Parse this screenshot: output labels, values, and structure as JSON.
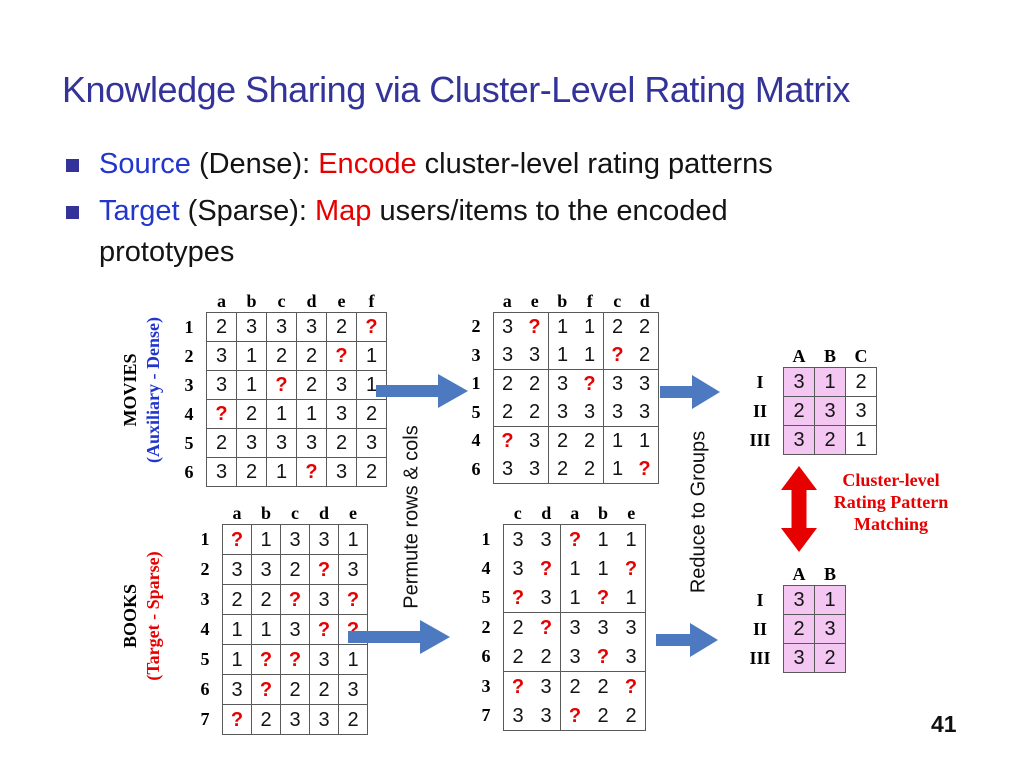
{
  "colors": {
    "title-blue": "#333399",
    "link-blue": "#2236cc",
    "accent-red": "#e60000",
    "pink": "#f4c6f2",
    "arrow-blue": "#4c79c0",
    "line": "#595959",
    "text-black": "#141414"
  },
  "slide": {
    "title": "Knowledge Sharing via Cluster-Level Rating Matrix",
    "page_number": "41",
    "bullets": {
      "b1": {
        "p1": "Source ",
        "p2": "(Dense): ",
        "p3": "Encode ",
        "p4": "cluster-level rating patterns"
      },
      "b2": {
        "p1": "Target ",
        "p2": "(Sparse): ",
        "p3": "Map ",
        "p4": "users/items to the encoded",
        "line2": "prototypes"
      }
    }
  },
  "diagram": {
    "movies_label": {
      "line1": "MOVIES",
      "line2": "(Auxiliary - Dense)"
    },
    "books_label": {
      "line1": "BOOKS",
      "line2": "(Target - Sparse)"
    },
    "permute_label": "Permute rows & cols",
    "reduce_label": "Reduce to Groups",
    "matching": {
      "line1": "Cluster-level",
      "line2": "Rating Pattern",
      "line3": "Matching"
    },
    "matrices": {
      "movies": {
        "cols": [
          "a",
          "b",
          "c",
          "d",
          "e",
          "f"
        ],
        "rows": [
          "1",
          "2",
          "3",
          "4",
          "5",
          "6"
        ],
        "cells": [
          [
            "2",
            "3",
            "3",
            "3",
            "2",
            "?"
          ],
          [
            "3",
            "1",
            "2",
            "2",
            "?",
            "1"
          ],
          [
            "3",
            "1",
            "?",
            "2",
            "3",
            "1"
          ],
          [
            "?",
            "2",
            "1",
            "1",
            "3",
            "2"
          ],
          [
            "2",
            "3",
            "3",
            "3",
            "2",
            "3"
          ],
          [
            "3",
            "2",
            "1",
            "?",
            "3",
            "2"
          ]
        ]
      },
      "movies_permuted": {
        "cols": [
          "a",
          "e",
          "b",
          "f",
          "c",
          "d"
        ],
        "rows": [
          "2",
          "3",
          "1",
          "5",
          "4",
          "6"
        ],
        "col_groups": [
          2,
          2,
          2
        ],
        "row_groups": [
          2,
          2,
          2
        ],
        "cells": [
          [
            "3",
            "?",
            "1",
            "1",
            "2",
            "2"
          ],
          [
            "3",
            "3",
            "1",
            "1",
            "?",
            "2"
          ],
          [
            "2",
            "2",
            "3",
            "?",
            "3",
            "3"
          ],
          [
            "2",
            "2",
            "3",
            "3",
            "3",
            "3"
          ],
          [
            "?",
            "3",
            "2",
            "2",
            "1",
            "1"
          ],
          [
            "3",
            "3",
            "2",
            "2",
            "1",
            "?"
          ]
        ]
      },
      "books": {
        "cols": [
          "a",
          "b",
          "c",
          "d",
          "e"
        ],
        "rows": [
          "1",
          "2",
          "3",
          "4",
          "5",
          "6",
          "7"
        ],
        "cells": [
          [
            "?",
            "1",
            "3",
            "3",
            "1"
          ],
          [
            "3",
            "3",
            "2",
            "?",
            "3"
          ],
          [
            "2",
            "2",
            "?",
            "3",
            "?"
          ],
          [
            "1",
            "1",
            "3",
            "?",
            "?"
          ],
          [
            "1",
            "?",
            "?",
            "3",
            "1"
          ],
          [
            "3",
            "?",
            "2",
            "2",
            "3"
          ],
          [
            "?",
            "2",
            "3",
            "3",
            "2"
          ]
        ]
      },
      "books_permuted": {
        "cols": [
          "c",
          "d",
          "a",
          "b",
          "e"
        ],
        "rows": [
          "1",
          "4",
          "5",
          "2",
          "6",
          "3",
          "7"
        ],
        "col_groups": [
          2,
          3
        ],
        "row_groups": [
          3,
          2,
          2
        ],
        "cells": [
          [
            "3",
            "3",
            "?",
            "1",
            "1"
          ],
          [
            "3",
            "?",
            "1",
            "1",
            "?"
          ],
          [
            "?",
            "3",
            "1",
            "?",
            "1"
          ],
          [
            "2",
            "?",
            "3",
            "3",
            "3"
          ],
          [
            "2",
            "2",
            "3",
            "?",
            "3"
          ],
          [
            "?",
            "3",
            "2",
            "2",
            "?"
          ],
          [
            "3",
            "3",
            "?",
            "2",
            "2"
          ]
        ]
      },
      "movies_clusters": {
        "cols": [
          "A",
          "B",
          "C"
        ],
        "rows": [
          "I",
          "II",
          "III"
        ],
        "pink_cols": [
          0,
          1
        ],
        "cells": [
          [
            "3",
            "1",
            "2"
          ],
          [
            "2",
            "3",
            "3"
          ],
          [
            "3",
            "2",
            "1"
          ]
        ]
      },
      "books_clusters": {
        "cols": [
          "A",
          "B"
        ],
        "rows": [
          "I",
          "II",
          "III"
        ],
        "pink_cols": [
          0,
          1
        ],
        "cells": [
          [
            "3",
            "1"
          ],
          [
            "2",
            "3"
          ],
          [
            "3",
            "2"
          ]
        ]
      }
    }
  }
}
